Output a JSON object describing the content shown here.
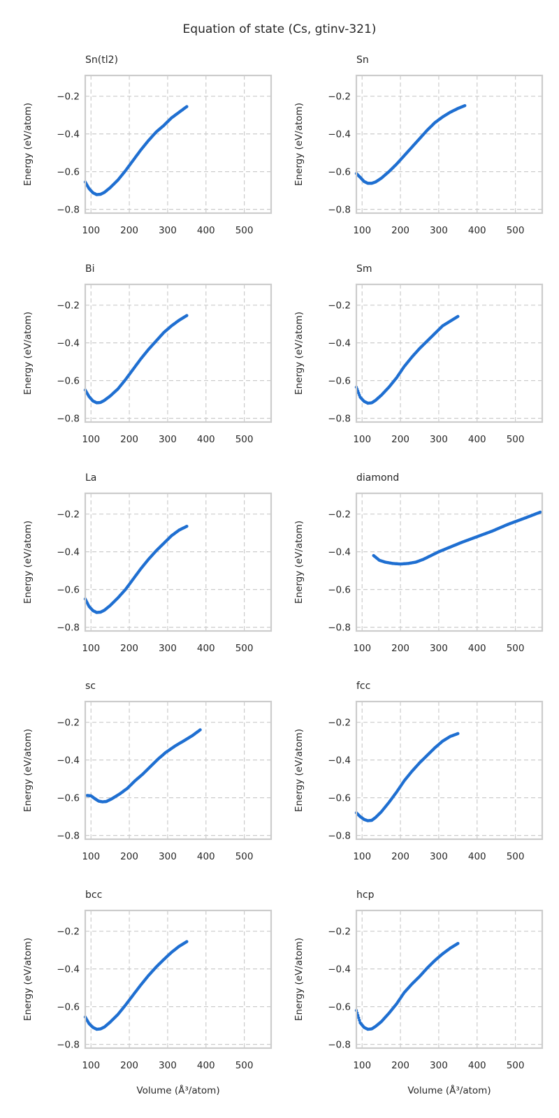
{
  "suptitle": "Equation of state (Cs, gtinv-321)",
  "chart_data": {
    "type": "scatter",
    "xlabel": "Volume (Å³/atom)",
    "ylabel": "Energy (eV/atom)",
    "xlim": [
      85,
      570
    ],
    "ylim": [
      -0.82,
      -0.09
    ],
    "xticks": [
      100,
      200,
      300,
      400,
      500
    ],
    "yticks": [
      -0.2,
      -0.4,
      -0.6,
      -0.8
    ],
    "ytick_labels": [
      "−0.2",
      "−0.4",
      "−0.6",
      "−0.8"
    ],
    "grid": true,
    "color": "#1f6fd1",
    "panels": [
      {
        "name": "Sn(tl2)",
        "x": [
          85,
          95,
          105,
          115,
          125,
          135,
          150,
          170,
          190,
          210,
          230,
          250,
          270,
          290,
          310,
          330,
          350
        ],
        "y": [
          -0.655,
          -0.69,
          -0.712,
          -0.722,
          -0.72,
          -0.71,
          -0.685,
          -0.645,
          -0.595,
          -0.54,
          -0.485,
          -0.435,
          -0.39,
          -0.355,
          -0.315,
          -0.285,
          -0.255
        ]
      },
      {
        "name": "Sn",
        "x": [
          85,
          95,
          105,
          115,
          125,
          135,
          150,
          170,
          190,
          210,
          230,
          250,
          270,
          290,
          310,
          330,
          350,
          368
        ],
        "y": [
          -0.61,
          -0.63,
          -0.652,
          -0.662,
          -0.662,
          -0.655,
          -0.635,
          -0.6,
          -0.56,
          -0.515,
          -0.47,
          -0.425,
          -0.38,
          -0.34,
          -0.31,
          -0.285,
          -0.265,
          -0.25
        ]
      },
      {
        "name": "Bi",
        "x": [
          85,
          95,
          105,
          115,
          125,
          135,
          150,
          170,
          190,
          210,
          230,
          250,
          270,
          290,
          310,
          330,
          350
        ],
        "y": [
          -0.65,
          -0.685,
          -0.708,
          -0.718,
          -0.716,
          -0.705,
          -0.682,
          -0.645,
          -0.595,
          -0.54,
          -0.485,
          -0.435,
          -0.39,
          -0.345,
          -0.31,
          -0.28,
          -0.255
        ]
      },
      {
        "name": "Sm",
        "x": [
          85,
          95,
          105,
          115,
          125,
          135,
          150,
          170,
          190,
          210,
          230,
          250,
          270,
          290,
          310,
          330,
          350
        ],
        "y": [
          -0.635,
          -0.688,
          -0.71,
          -0.72,
          -0.718,
          -0.705,
          -0.678,
          -0.635,
          -0.585,
          -0.525,
          -0.475,
          -0.43,
          -0.39,
          -0.35,
          -0.31,
          -0.285,
          -0.26
        ]
      },
      {
        "name": "La",
        "x": [
          85,
          95,
          105,
          115,
          125,
          135,
          150,
          170,
          190,
          210,
          230,
          250,
          270,
          290,
          310,
          330,
          350
        ],
        "y": [
          -0.65,
          -0.69,
          -0.712,
          -0.722,
          -0.72,
          -0.71,
          -0.685,
          -0.645,
          -0.6,
          -0.545,
          -0.49,
          -0.44,
          -0.395,
          -0.355,
          -0.315,
          -0.285,
          -0.265
        ]
      },
      {
        "name": "diamond",
        "x": [
          130,
          145,
          160,
          180,
          200,
          220,
          240,
          260,
          280,
          300,
          330,
          360,
          400,
          440,
          480,
          520,
          565
        ],
        "y": [
          -0.42,
          -0.445,
          -0.455,
          -0.462,
          -0.465,
          -0.462,
          -0.455,
          -0.44,
          -0.42,
          -0.4,
          -0.375,
          -0.35,
          -0.32,
          -0.29,
          -0.255,
          -0.225,
          -0.19
        ]
      },
      {
        "name": "sc",
        "x": [
          90,
          100,
          110,
          120,
          130,
          140,
          155,
          175,
          195,
          215,
          235,
          255,
          275,
          295,
          320,
          345,
          365,
          385
        ],
        "y": [
          -0.588,
          -0.59,
          -0.605,
          -0.618,
          -0.622,
          -0.62,
          -0.605,
          -0.58,
          -0.55,
          -0.51,
          -0.475,
          -0.435,
          -0.395,
          -0.36,
          -0.325,
          -0.295,
          -0.27,
          -0.24
        ]
      },
      {
        "name": "fcc",
        "x": [
          85,
          95,
          105,
          115,
          125,
          135,
          150,
          170,
          190,
          210,
          230,
          250,
          270,
          290,
          310,
          330,
          350
        ],
        "y": [
          -0.68,
          -0.7,
          -0.715,
          -0.722,
          -0.72,
          -0.705,
          -0.675,
          -0.625,
          -0.57,
          -0.51,
          -0.46,
          -0.415,
          -0.375,
          -0.335,
          -0.3,
          -0.275,
          -0.26
        ]
      },
      {
        "name": "bcc",
        "x": [
          85,
          95,
          105,
          115,
          125,
          135,
          150,
          170,
          190,
          210,
          230,
          250,
          270,
          290,
          310,
          330,
          350
        ],
        "y": [
          -0.655,
          -0.69,
          -0.71,
          -0.72,
          -0.718,
          -0.708,
          -0.682,
          -0.642,
          -0.592,
          -0.538,
          -0.485,
          -0.435,
          -0.39,
          -0.35,
          -0.312,
          -0.28,
          -0.255
        ]
      },
      {
        "name": "hcp",
        "x": [
          85,
          95,
          105,
          115,
          125,
          135,
          150,
          170,
          190,
          210,
          230,
          250,
          270,
          290,
          310,
          330,
          350
        ],
        "y": [
          -0.62,
          -0.685,
          -0.71,
          -0.72,
          -0.718,
          -0.705,
          -0.68,
          -0.635,
          -0.585,
          -0.525,
          -0.48,
          -0.44,
          -0.395,
          -0.355,
          -0.32,
          -0.29,
          -0.265
        ]
      }
    ]
  }
}
